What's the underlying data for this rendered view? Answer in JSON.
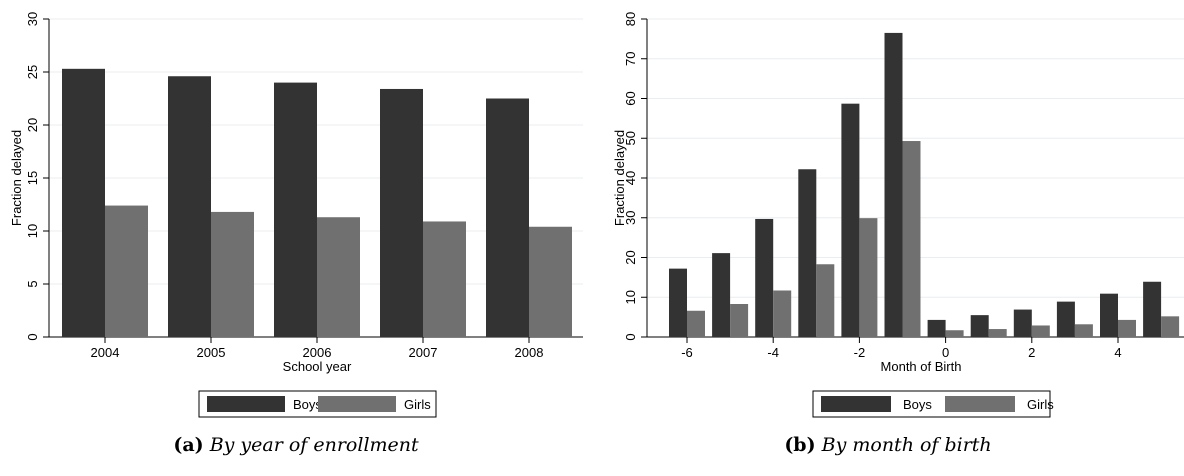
{
  "chart_data": [
    {
      "type": "bar",
      "categories": [
        "2004",
        "2005",
        "2006",
        "2007",
        "2008"
      ],
      "series": [
        {
          "name": "Boys",
          "values": [
            25.3,
            24.6,
            24.0,
            23.4,
            22.5
          ],
          "color": "#333333"
        },
        {
          "name": "Girls",
          "values": [
            12.4,
            11.8,
            11.3,
            10.9,
            10.4
          ],
          "color": "#707070"
        }
      ],
      "xlabel": "School year",
      "ylabel": "Fraction delayed",
      "ylim": [
        0,
        30
      ],
      "yticks": [
        0,
        5,
        10,
        15,
        20,
        25,
        30
      ],
      "grid": true,
      "legend": "bottom-center",
      "caption_label": "(a)",
      "caption": "By year of enrollment"
    },
    {
      "type": "bar",
      "x": [
        -6,
        -5,
        -4,
        -3,
        -2,
        -1,
        0,
        1,
        2,
        3,
        4,
        5
      ],
      "xticks": [
        -6,
        -4,
        -2,
        0,
        2,
        4
      ],
      "series": [
        {
          "name": "Boys",
          "values": [
            17.2,
            21.1,
            29.7,
            42.2,
            58.7,
            76.5,
            4.3,
            5.5,
            6.9,
            8.9,
            10.9,
            13.9
          ],
          "color": "#333333"
        },
        {
          "name": "Girls",
          "values": [
            6.6,
            8.3,
            11.7,
            18.3,
            29.9,
            49.3,
            1.7,
            2.0,
            2.9,
            3.2,
            4.3,
            5.2
          ],
          "color": "#707070"
        }
      ],
      "xlabel": "Month of Birth",
      "ylabel": "Fraction delayed",
      "ylim": [
        0,
        80
      ],
      "yticks": [
        0,
        10,
        20,
        30,
        40,
        50,
        60,
        70,
        80
      ],
      "grid": true,
      "legend": "bottom-center",
      "caption_label": "(b)",
      "caption": "By month of birth"
    }
  ]
}
